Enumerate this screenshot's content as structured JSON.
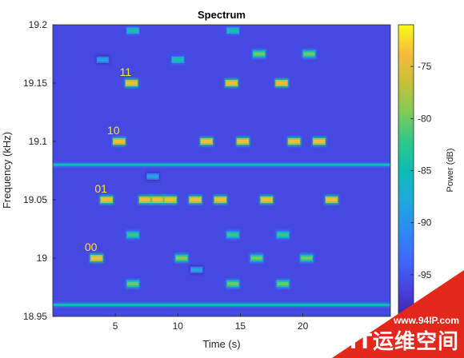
{
  "chart_data": {
    "type": "heatmap",
    "title": "Spectrum",
    "xlabel": "Time (s)",
    "ylabel": "Frequency (kHz)",
    "xlim": [
      0,
      27
    ],
    "ylim": [
      18.95,
      19.2
    ],
    "xticks": [
      5,
      10,
      15,
      20
    ],
    "yticks": [
      18.95,
      19,
      19.05,
      19.1,
      19.15,
      19.2
    ],
    "ytick_labels": [
      "18.95",
      "19",
      "19.05",
      "19.1",
      "19.15",
      "19.2"
    ],
    "colorbar": {
      "label": "Power (dB)",
      "range": [
        -99,
        -71
      ],
      "ticks": [
        -95,
        -90,
        -85,
        -80,
        -75
      ],
      "colormap": "parula"
    },
    "background_power_db": -96,
    "continuous_lines": [
      {
        "frequency_khz": 19.08,
        "power_db": -85
      },
      {
        "frequency_khz": 18.96,
        "power_db": -85
      }
    ],
    "bursts": [
      {
        "t": [
          3.0,
          4.0
        ],
        "f": 19.0,
        "power_db": -74
      },
      {
        "t": [
          3.8,
          4.8
        ],
        "f": 19.05,
        "power_db": -74
      },
      {
        "t": [
          4.8,
          5.8
        ],
        "f": 19.1,
        "power_db": -74
      },
      {
        "t": [
          5.8,
          6.8
        ],
        "f": 19.15,
        "power_db": -74
      },
      {
        "t": [
          6.9,
          7.9
        ],
        "f": 19.05,
        "power_db": -74
      },
      {
        "t": [
          7.9,
          8.9
        ],
        "f": 19.05,
        "power_db": -74
      },
      {
        "t": [
          8.9,
          9.9
        ],
        "f": 19.05,
        "power_db": -74
      },
      {
        "t": [
          9.8,
          10.8
        ],
        "f": 19.0,
        "power_db": -79
      },
      {
        "t": [
          10.9,
          11.9
        ],
        "f": 19.05,
        "power_db": -74
      },
      {
        "t": [
          11.8,
          12.8
        ],
        "f": 19.1,
        "power_db": -74
      },
      {
        "t": [
          12.9,
          13.9
        ],
        "f": 19.05,
        "power_db": -74
      },
      {
        "t": [
          13.8,
          14.8
        ],
        "f": 19.15,
        "power_db": -74
      },
      {
        "t": [
          14.7,
          15.7
        ],
        "f": 19.1,
        "power_db": -74
      },
      {
        "t": [
          15.8,
          16.8
        ],
        "f": 19.0,
        "power_db": -80
      },
      {
        "t": [
          16.6,
          17.6
        ],
        "f": 19.05,
        "power_db": -74
      },
      {
        "t": [
          17.8,
          18.8
        ],
        "f": 19.15,
        "power_db": -74
      },
      {
        "t": [
          18.8,
          19.8
        ],
        "f": 19.1,
        "power_db": -74
      },
      {
        "t": [
          19.8,
          20.8
        ],
        "f": 19.0,
        "power_db": -80
      },
      {
        "t": [
          20.8,
          21.8
        ],
        "f": 19.1,
        "power_db": -74
      },
      {
        "t": [
          21.8,
          22.8
        ],
        "f": 19.05,
        "power_db": -74
      },
      {
        "t": [
          5.9,
          6.9
        ],
        "f": 18.978,
        "power_db": -80
      },
      {
        "t": [
          5.9,
          6.9
        ],
        "f": 19.02,
        "power_db": -82
      },
      {
        "t": [
          13.9,
          14.9
        ],
        "f": 18.978,
        "power_db": -80
      },
      {
        "t": [
          13.9,
          14.9
        ],
        "f": 19.02,
        "power_db": -82
      },
      {
        "t": [
          17.9,
          18.9
        ],
        "f": 18.978,
        "power_db": -80
      },
      {
        "t": [
          17.9,
          18.9
        ],
        "f": 19.02,
        "power_db": -82
      },
      {
        "t": [
          5.9,
          6.9
        ],
        "f": 19.195,
        "power_db": -84
      },
      {
        "t": [
          13.9,
          14.9
        ],
        "f": 19.195,
        "power_db": -84
      },
      {
        "t": [
          9.5,
          10.5
        ],
        "f": 19.17,
        "power_db": -84
      },
      {
        "t": [
          16,
          17
        ],
        "f": 19.175,
        "power_db": -80
      },
      {
        "t": [
          20,
          21
        ],
        "f": 19.175,
        "power_db": -80
      },
      {
        "t": [
          3.5,
          4.5
        ],
        "f": 19.17,
        "power_db": -88
      },
      {
        "t": [
          11,
          12
        ],
        "f": 18.99,
        "power_db": -88
      },
      {
        "t": [
          7.5,
          8.5
        ],
        "f": 19.07,
        "power_db": -88
      }
    ],
    "annotations": [
      {
        "text": "00",
        "x": 3.0,
        "y": 19.006
      },
      {
        "text": "01",
        "x": 3.8,
        "y": 19.056
      },
      {
        "text": "10",
        "x": 4.8,
        "y": 19.106
      },
      {
        "text": "11",
        "x": 5.8,
        "y": 19.156
      }
    ]
  },
  "watermark": {
    "url": "www.94IP.com",
    "name": "IT运维空间"
  }
}
